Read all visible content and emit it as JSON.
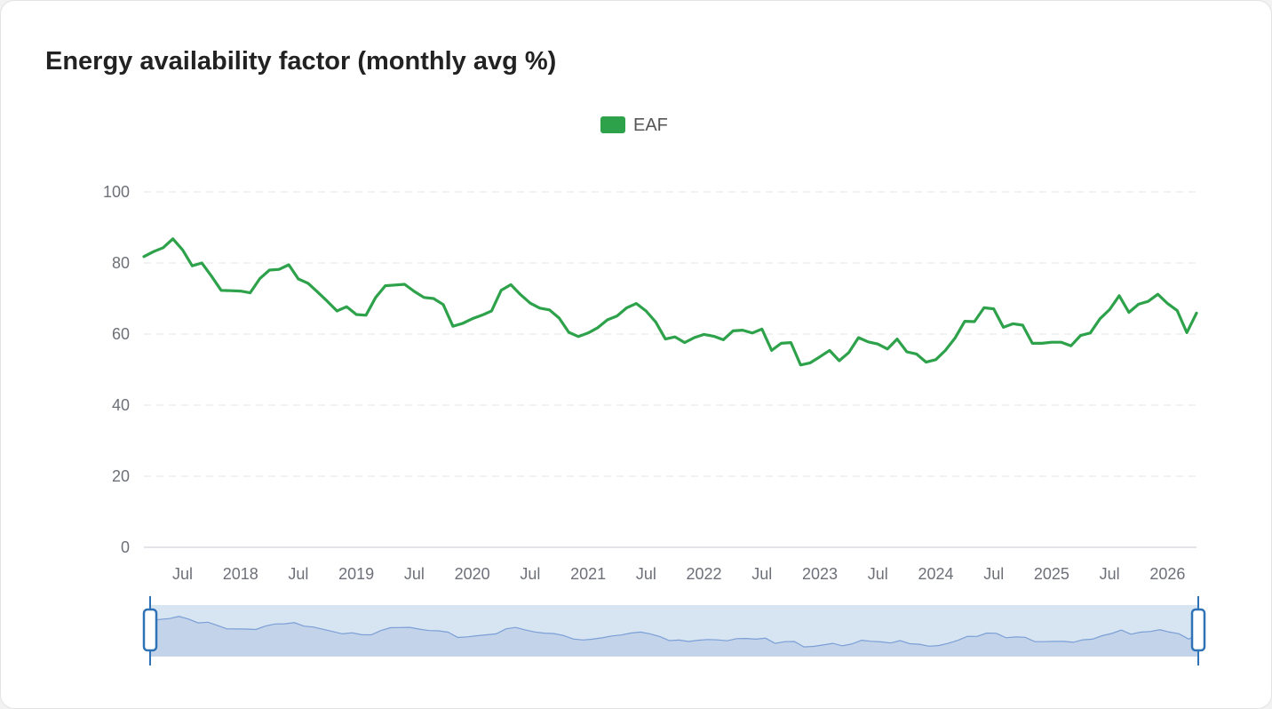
{
  "title": "Energy availability factor (monthly avg %)",
  "chart_data": {
    "type": "line",
    "title": "Energy availability factor (monthly avg %)",
    "legend": {
      "position": "top-center",
      "entries": [
        "EAF"
      ]
    },
    "ylim": [
      0,
      100
    ],
    "y_ticks": [
      "0",
      "20",
      "40",
      "60",
      "80",
      "100"
    ],
    "x_ticks": [
      {
        "label": "Jul",
        "date": "2017-07"
      },
      {
        "label": "2018",
        "date": "2018-01"
      },
      {
        "label": "Jul",
        "date": "2018-07"
      },
      {
        "label": "2019",
        "date": "2019-01"
      },
      {
        "label": "Jul",
        "date": "2019-07"
      },
      {
        "label": "2020",
        "date": "2020-01"
      },
      {
        "label": "Jul",
        "date": "2020-07"
      },
      {
        "label": "2021",
        "date": "2021-01"
      },
      {
        "label": "Jul",
        "date": "2021-07"
      },
      {
        "label": "2022",
        "date": "2022-01"
      },
      {
        "label": "Jul",
        "date": "2022-07"
      },
      {
        "label": "2023",
        "date": "2023-01"
      },
      {
        "label": "Jul",
        "date": "2023-07"
      },
      {
        "label": "2024",
        "date": "2024-01"
      },
      {
        "label": "Jul",
        "date": "2024-07"
      },
      {
        "label": "2025",
        "date": "2025-01"
      },
      {
        "label": "Jul",
        "date": "2025-07"
      },
      {
        "label": "2026",
        "date": "2026-01"
      }
    ],
    "xlim": [
      "2017-03",
      "2026-04"
    ],
    "grid": true,
    "data_zoom": {
      "start": "2017-03",
      "end": "2026-04"
    },
    "series": [
      {
        "name": "EAF",
        "color": "#2ea24b",
        "x": [
          "2017-03",
          "2017-04",
          "2017-05",
          "2017-06",
          "2017-07",
          "2017-08",
          "2017-09",
          "2017-10",
          "2017-11",
          "2017-12",
          "2018-01",
          "2018-02",
          "2018-03",
          "2018-04",
          "2018-05",
          "2018-06",
          "2018-07",
          "2018-08",
          "2018-09",
          "2018-10",
          "2018-11",
          "2018-12",
          "2019-01",
          "2019-02",
          "2019-03",
          "2019-04",
          "2019-05",
          "2019-06",
          "2019-07",
          "2019-08",
          "2019-09",
          "2019-10",
          "2019-11",
          "2019-12",
          "2020-01",
          "2020-02",
          "2020-03",
          "2020-04",
          "2020-05",
          "2020-06",
          "2020-07",
          "2020-08",
          "2020-09",
          "2020-10",
          "2020-11",
          "2020-12",
          "2021-01",
          "2021-02",
          "2021-03",
          "2021-04",
          "2021-05",
          "2021-06",
          "2021-07",
          "2021-08",
          "2021-09",
          "2021-10",
          "2021-11",
          "2021-12",
          "2022-01",
          "2022-02",
          "2022-03",
          "2022-04",
          "2022-05",
          "2022-06",
          "2022-07",
          "2022-08",
          "2022-09",
          "2022-10",
          "2022-11",
          "2022-12",
          "2023-01",
          "2023-02",
          "2023-03",
          "2023-04",
          "2023-05",
          "2023-06",
          "2023-07",
          "2023-08",
          "2023-09",
          "2023-10",
          "2023-11",
          "2023-12",
          "2024-01",
          "2024-02",
          "2024-03",
          "2024-04",
          "2024-05",
          "2024-06",
          "2024-07",
          "2024-08",
          "2024-09",
          "2024-10",
          "2024-11",
          "2024-12",
          "2025-01",
          "2025-02",
          "2025-03",
          "2025-04",
          "2025-05",
          "2025-06",
          "2025-07",
          "2025-08",
          "2025-09",
          "2025-10",
          "2025-11",
          "2025-12",
          "2026-01",
          "2026-02",
          "2026-03",
          "2026-04"
        ],
        "values": [
          81.8,
          83.2,
          84.3,
          86.8,
          83.7,
          79.2,
          80.0,
          76.3,
          72.3,
          72.2,
          72.1,
          71.6,
          75.6,
          78.0,
          78.2,
          79.5,
          75.5,
          74.3,
          71.8,
          69.2,
          66.5,
          67.7,
          65.5,
          65.3,
          70.3,
          73.6,
          73.8,
          74.0,
          72.0,
          70.3,
          70.0,
          68.3,
          62.2,
          63.0,
          64.3,
          65.3,
          66.5,
          72.3,
          73.9,
          71.1,
          68.7,
          67.3,
          66.8,
          64.5,
          60.5,
          59.3,
          60.3,
          61.8,
          64.0,
          65.1,
          67.4,
          68.6,
          66.5,
          63.4,
          58.6,
          59.2,
          57.6,
          59.0,
          59.9,
          59.4,
          58.4,
          60.9,
          61.1,
          60.3,
          61.4,
          55.4,
          57.4,
          57.6,
          51.3,
          51.9,
          53.6,
          55.4,
          52.5,
          54.8,
          59.0,
          57.8,
          57.2,
          55.8,
          58.6,
          55.0,
          54.4,
          52.1,
          52.8,
          55.4,
          58.9,
          63.6,
          63.5,
          67.4,
          67.1,
          61.9,
          62.9,
          62.5,
          57.4,
          57.4,
          57.7,
          57.7,
          56.7,
          59.6,
          60.3,
          64.3,
          66.9,
          70.8,
          66.1,
          68.4,
          69.2,
          71.2,
          68.6,
          66.6,
          60.4,
          65.9
        ]
      }
    ]
  }
}
